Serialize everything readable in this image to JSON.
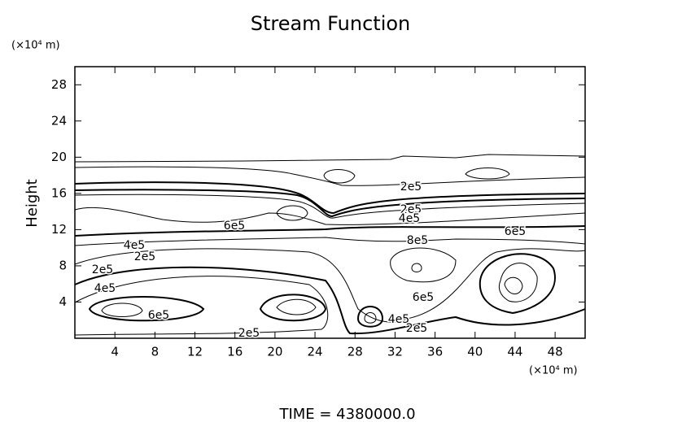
{
  "chart_data": {
    "type": "contour",
    "title": "Stream Function",
    "y_unit": "(×10⁴ m)",
    "x_unit": "(×10⁴ m)",
    "y_label": "Height",
    "footer": "TIME = 4380000.0",
    "xlim": [
      0,
      51
    ],
    "ylim": [
      0,
      30
    ],
    "xticks": [
      4,
      8,
      12,
      16,
      20,
      24,
      28,
      32,
      36,
      40,
      44,
      48
    ],
    "yticks": [
      4,
      8,
      12,
      16,
      20,
      24,
      28
    ],
    "color": "#000000",
    "contour_labels": [
      "2e5",
      "2e5",
      "4e5",
      "6e5",
      "6e5",
      "8e5",
      "4e5",
      "2e5",
      "2e5",
      "4e5",
      "6e5",
      "6e5",
      "2e5",
      "4e5",
      "2e5"
    ]
  }
}
